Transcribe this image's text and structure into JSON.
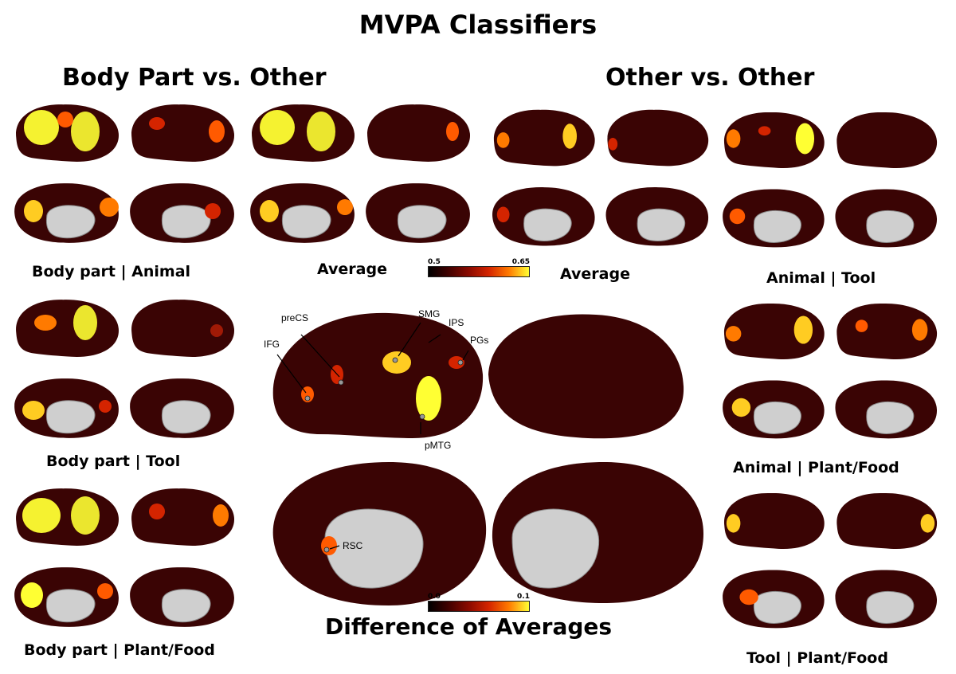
{
  "title": "MVPA Classifiers",
  "sections": {
    "left": "Body Part vs. Other",
    "right": "Other vs. Other"
  },
  "panels": {
    "bp_animal": "Body part | Animal",
    "bp_tool": "Body part | Tool",
    "bp_plant": "Body part | Plant/Food",
    "avg_left": "Average",
    "avg_right": "Average",
    "animal_tool": "Animal | Tool",
    "animal_plant": "Animal | Plant/Food",
    "tool_plant": "Tool | Plant/Food",
    "difference": "Difference of Averages"
  },
  "colorbars": {
    "average": {
      "min": "0.5",
      "max": "0.65"
    },
    "difference": {
      "min": "0.0",
      "max": "0.1"
    }
  },
  "roi_labels": [
    "preCS",
    "IFG",
    "SMG",
    "IPS",
    "PGs",
    "pMTG",
    "RSC"
  ],
  "colors": {
    "cortex_dark": "#3a0404",
    "cortex_mid": "#a01a06",
    "hot": "#ff5a00",
    "peak": "#ffff33",
    "medial_wall": "#cfcfcf"
  }
}
